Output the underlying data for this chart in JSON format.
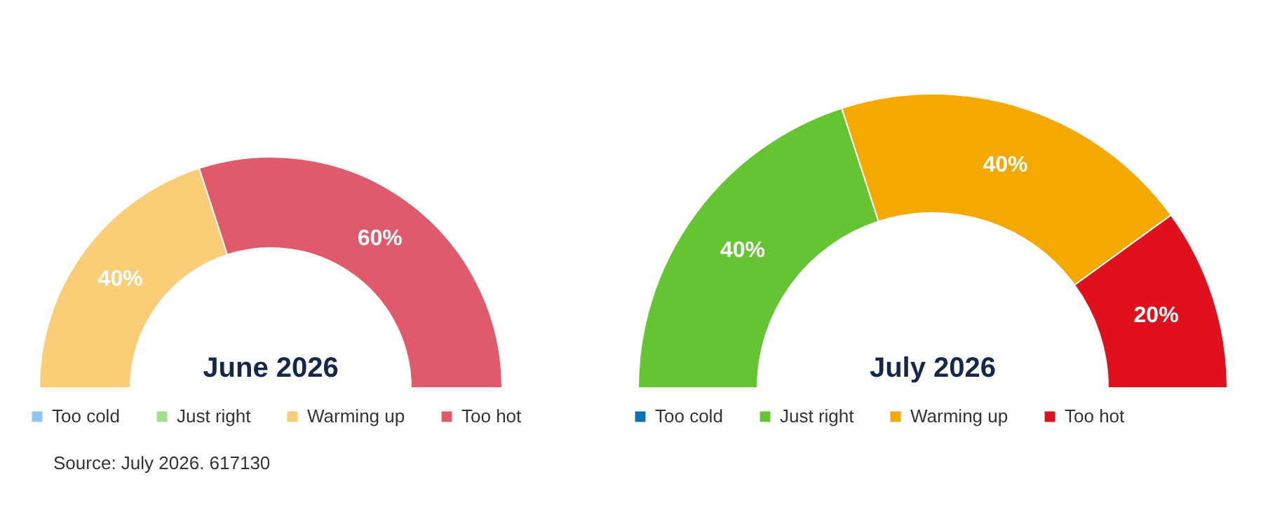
{
  "chart_data": [
    {
      "type": "donut",
      "title": "June 2026",
      "categories": [
        "Too cold",
        "Just right",
        "Warming up",
        "Too hot"
      ],
      "values": [
        0,
        0,
        40,
        60
      ],
      "colors": [
        "#8fc5f2",
        "#9fe08a",
        "#fbcd76",
        "#e05a6c"
      ],
      "value_labels": [
        null,
        null,
        "40%",
        "60%"
      ],
      "legend": "bottom",
      "annotations": [
        "Source: July 2026. 617130"
      ]
    },
    {
      "type": "donut",
      "title": "July 2026",
      "categories": [
        "Too cold",
        "Just right",
        "Warming up",
        "Too hot"
      ],
      "values": [
        0,
        40,
        40,
        20
      ],
      "colors": [
        "#0a6fb5",
        "#64c432",
        "#f5a900",
        "#e1101d"
      ],
      "value_labels": [
        null,
        "40%",
        "40%",
        "20%"
      ],
      "legend": "bottom"
    }
  ]
}
